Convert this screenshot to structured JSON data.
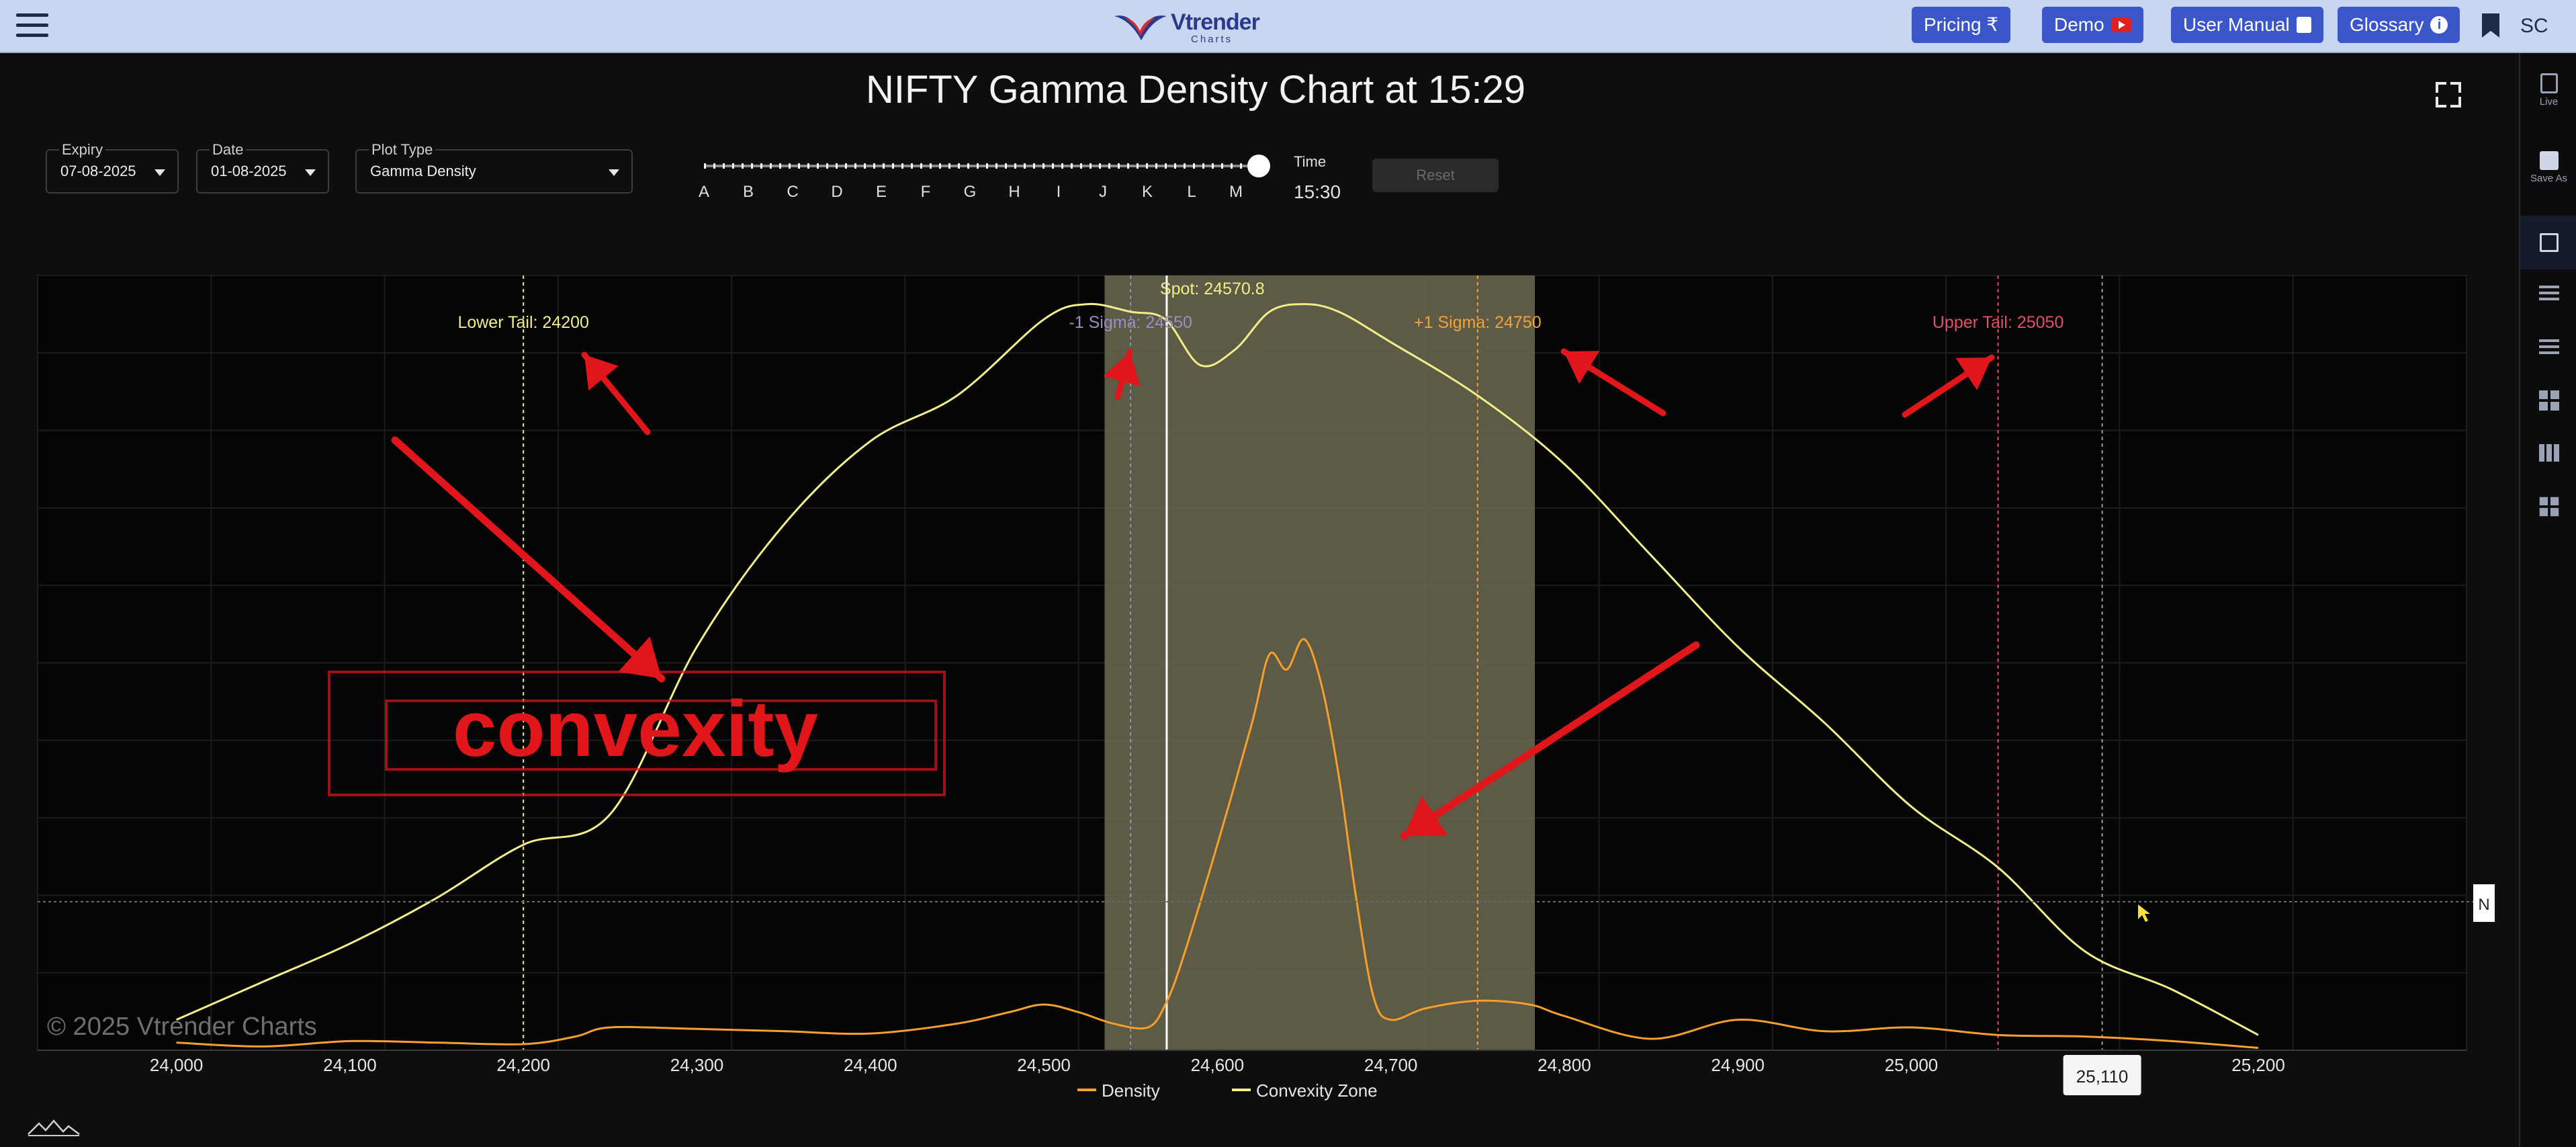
{
  "topbar": {
    "logo_brand": "Vtrender",
    "logo_sub": "Charts",
    "pricing_label": "Pricing ₹",
    "demo_label": "Demo",
    "manual_label": "User Manual",
    "glossary_label": "Glossary",
    "avatar_initials": "SC"
  },
  "sidebar": {
    "live_label": "Live",
    "save_label": "Save As"
  },
  "header": {
    "title": "NIFTY Gamma Density Chart at 15:29"
  },
  "controls": {
    "expiry_label": "Expiry",
    "expiry_value": "07-08-2025",
    "date_label": "Date",
    "date_value": "01-08-2025",
    "plot_type_label": "Plot Type",
    "plot_type_value": "Gamma Density",
    "slider_letters": [
      "A",
      "B",
      "C",
      "D",
      "E",
      "F",
      "G",
      "H",
      "I",
      "J",
      "K",
      "L",
      "M"
    ],
    "slider_position": 1.0,
    "time_label": "Time",
    "time_value": "15:30",
    "reset_label": "Reset"
  },
  "chart_data": {
    "type": "line",
    "title": "",
    "x_range": [
      23920,
      25320
    ],
    "xticks": [
      24000,
      24100,
      24200,
      24300,
      24400,
      24500,
      24600,
      24700,
      24800,
      24900,
      25000,
      25100,
      25200
    ],
    "xtick_labels": [
      "24,000",
      "24,100",
      "24,200",
      "24,300",
      "24,400",
      "24,500",
      "24,600",
      "24,700",
      "24,800",
      "24,900",
      "25,000",
      "",
      "25,200"
    ],
    "y_range": [
      0,
      1
    ],
    "grid": true,
    "legend_position": "bottom-center",
    "series": [
      {
        "name": "Density",
        "color": "#f5a02a",
        "x": [
          24000,
          24050,
          24100,
          24150,
          24200,
          24230,
          24250,
          24300,
          24350,
          24400,
          24450,
          24480,
          24500,
          24520,
          24540,
          24560,
          24570,
          24580,
          24600,
          24620,
          24630,
          24640,
          24650,
          24660,
          24670,
          24680,
          24690,
          24700,
          24720,
          24750,
          24780,
          24800,
          24850,
          24900,
          24950,
          25000,
          25050,
          25100,
          25150,
          25200
        ],
        "y": [
          0.01,
          0.005,
          0.012,
          0.01,
          0.008,
          0.018,
          0.03,
          0.028,
          0.025,
          0.022,
          0.035,
          0.05,
          0.06,
          0.05,
          0.035,
          0.03,
          0.06,
          0.12,
          0.27,
          0.43,
          0.52,
          0.5,
          0.54,
          0.48,
          0.36,
          0.2,
          0.07,
          0.04,
          0.055,
          0.065,
          0.06,
          0.045,
          0.015,
          0.04,
          0.025,
          0.03,
          0.02,
          0.018,
          0.012,
          0.003
        ]
      },
      {
        "name": "Convexity Zone",
        "color": "#f2ee8a",
        "x": [
          24000,
          24050,
          24100,
          24150,
          24200,
          24250,
          24300,
          24350,
          24400,
          24450,
          24500,
          24525,
          24550,
          24570,
          24590,
          24610,
          24630,
          24650,
          24670,
          24700,
          24750,
          24800,
          24850,
          24900,
          24950,
          25000,
          25050,
          25100,
          25150,
          25200
        ],
        "y": [
          0.04,
          0.09,
          0.14,
          0.2,
          0.27,
          0.31,
          0.53,
          0.69,
          0.8,
          0.86,
          0.96,
          0.98,
          0.97,
          0.96,
          0.9,
          0.92,
          0.97,
          0.98,
          0.97,
          0.93,
          0.86,
          0.77,
          0.65,
          0.53,
          0.43,
          0.32,
          0.24,
          0.13,
          0.08,
          0.02
        ]
      }
    ],
    "shaded_zone": {
      "from": 24535,
      "to": 24783,
      "color": "#6d6a52"
    },
    "vlines": [
      {
        "x": 24200,
        "label": "Lower Tail: 24200",
        "color": "#f2ee8a"
      },
      {
        "x": 24550,
        "label": "-1 Sigma: 24550",
        "color": "#9a8fc4"
      },
      {
        "x": 24570.8,
        "label": "Spot: 24570.8",
        "color": "#f2ee8a"
      },
      {
        "x": 24750,
        "label": "+1 Sigma: 24750",
        "color": "#f2a23a"
      },
      {
        "x": 25050,
        "label": "Upper Tail: 25050",
        "color": "#e0506a"
      },
      {
        "x": 25110,
        "label": "",
        "color": "#9a9a9a"
      }
    ],
    "crosshair": {
      "x_label": "25,110",
      "y_tag": "N"
    },
    "watermark": "© 2025 Vtrender Charts",
    "annotation_text": "convexity",
    "annotation_color": "#e0161b"
  }
}
